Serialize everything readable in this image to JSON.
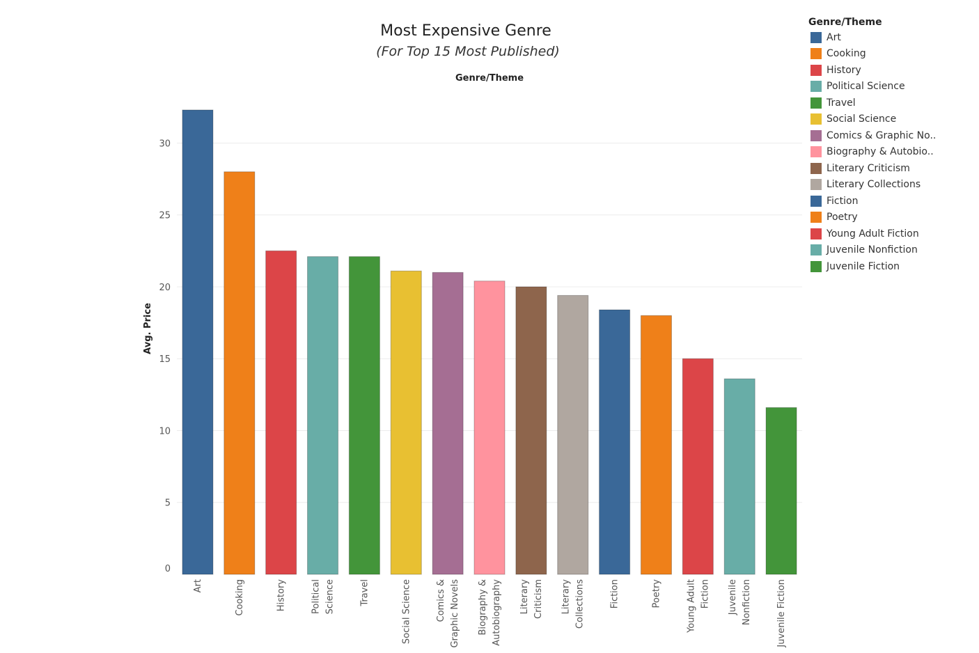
{
  "chart_data": {
    "type": "bar",
    "title": "Most Expensive Genre",
    "subtitle": "(For Top 15 Most Published)",
    "column_header": "Genre/Theme",
    "ylabel": "Avg. Price",
    "ylim": [
      0,
      33
    ],
    "yticks": [
      0,
      5,
      10,
      15,
      20,
      25,
      30
    ],
    "grid": true,
    "legend_title": "Genre/Theme",
    "legend_placement": "right",
    "categories": [
      "Art",
      "Cooking",
      "History",
      "Political Science",
      "Travel",
      "Social Science",
      "Comics & Graphic Novels",
      "Biography & Autobiography",
      "Literary Criticism",
      "Literary Collections",
      "Fiction",
      "Poetry",
      "Young Adult Fiction",
      "Juvenile Nonfiction",
      "Juvenile Fiction"
    ],
    "category_label_lines": [
      [
        "Art"
      ],
      [
        "Cooking"
      ],
      [
        "History"
      ],
      [
        "Political",
        "Science"
      ],
      [
        "Travel"
      ],
      [
        "Social Science"
      ],
      [
        "Comics &",
        "Graphic Novels"
      ],
      [
        "Biography &",
        "Autobiography"
      ],
      [
        "Literary",
        "Criticism"
      ],
      [
        "Literary",
        "Collections"
      ],
      [
        "Fiction"
      ],
      [
        "Poetry"
      ],
      [
        "Young Adult",
        "Fiction"
      ],
      [
        "Juvenile",
        "Nonfiction"
      ],
      [
        "Juvenile Fiction"
      ]
    ],
    "values": [
      32.3,
      28.0,
      22.5,
      22.1,
      22.1,
      21.1,
      21.0,
      20.4,
      20.0,
      19.4,
      18.4,
      18.0,
      15.0,
      13.6,
      11.6
    ],
    "colors": [
      "#3a6898",
      "#ef8019",
      "#dc4548",
      "#68ada7",
      "#43953a",
      "#e8c032",
      "#a56e93",
      "#ff939e",
      "#8e654c",
      "#b0a7a0",
      "#3a6898",
      "#ef8019",
      "#dc4548",
      "#68ada7",
      "#43953a"
    ],
    "legend_entries": [
      "Art",
      "Cooking",
      "History",
      "Political Science",
      "Travel",
      "Social Science",
      "Comics & Graphic No..",
      "Biography & Autobio..",
      "Literary Criticism",
      "Literary Collections",
      "Fiction",
      "Poetry",
      "Young Adult Fiction",
      "Juvenile Nonfiction",
      "Juvenile Fiction"
    ]
  }
}
